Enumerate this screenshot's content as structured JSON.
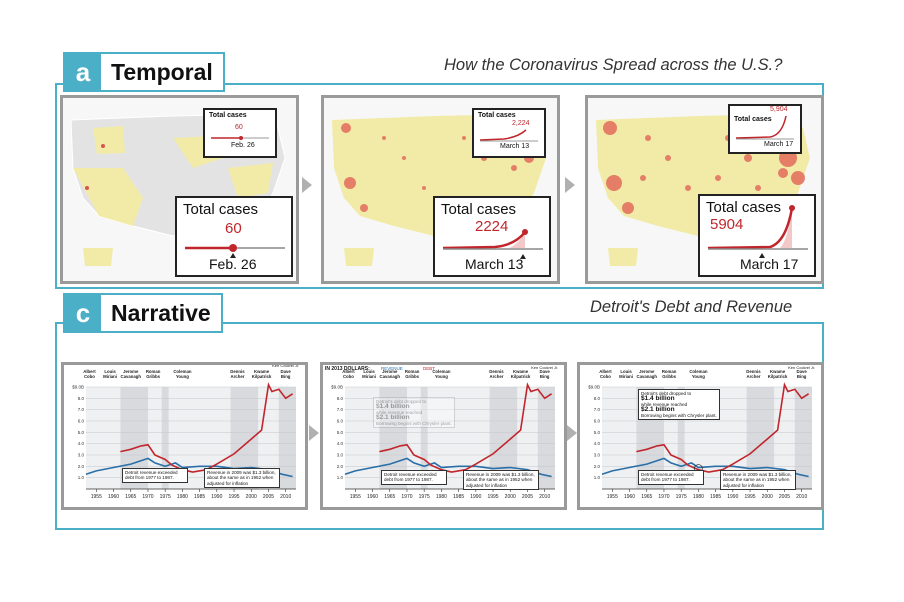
{
  "temporal": {
    "letter": "a",
    "label": "Temporal",
    "subtitle": "How the Coronavirus Spread across the U.S.?",
    "frames": [
      {
        "small_title": "Total cases",
        "small_value": "60",
        "small_date": "Feb. 26",
        "big_title": "Total cases",
        "big_value": "60",
        "big_date": "Feb. 26"
      },
      {
        "small_title": "Total cases",
        "small_value": "2,224",
        "small_date": "March 13",
        "big_title": "Total cases",
        "big_value": "2224",
        "big_date": "March 13"
      },
      {
        "small_title": "Total cases",
        "small_value": "5,904",
        "small_date": "March 17",
        "big_title": "Total cases",
        "big_value": "5904",
        "big_date": "March 17"
      }
    ]
  },
  "narrative": {
    "letter": "c",
    "label": "Narrative",
    "subtitle": "Detroit's Debt and Revenue",
    "chart_header": "IN 2013 DOLLARS:",
    "legend_revenue": "REVENUE",
    "legend_debt": "DEBT",
    "mayors": [
      "Albert Cobo",
      "Louis Miriani",
      "Jerome Cavanagh",
      "Roman Gribbs",
      "Coleman Young",
      "Dennis Archer",
      "Kwame Kilpatrick",
      "Dave Bing"
    ],
    "mayor_extra": "Ken Cockrel Jr.",
    "note_exceeded": "Detroit revenue exceeded debt from 1977 to 1987.",
    "note_revenue_2009": "Revenue in 2009 was $1.3 billion, about the same as in 1952 when adjusted for inflation",
    "note_debt_line1": "Detroit's debt dropped to",
    "note_debt_value1": "$1.4 billion",
    "note_debt_line2": "while revenue reached",
    "note_debt_value2": "$2.1 billion",
    "note_debt_line3": "Borrowing begins with Chrysler plant.",
    "colors": {
      "revenue": "#2a6fa8",
      "debt": "#c0262c",
      "accent": "#4bafc8"
    }
  },
  "chart_data": {
    "type": "line",
    "title": "",
    "xlabel": "",
    "ylabel": "",
    "x_ticks": [
      "1955",
      "1960",
      "1965",
      "1970",
      "1975",
      "1980",
      "1985",
      "1990",
      "1995",
      "2000",
      "2005",
      "2010"
    ],
    "y_ticks": [
      "1.0",
      "2.0",
      "3.0",
      "4.0",
      "5.0",
      "6.0",
      "7.0",
      "8.0",
      "$9.0B"
    ],
    "ylim": [
      0,
      9
    ],
    "xlim": [
      1952,
      2013
    ],
    "series": [
      {
        "name": "REVENUE",
        "x": [
          1952,
          1955,
          1960,
          1965,
          1970,
          1972,
          1975,
          1978,
          1980,
          1985,
          1990,
          1995,
          2000,
          2005,
          2009,
          2012
        ],
        "values": [
          1.3,
          1.6,
          1.9,
          2.2,
          2.7,
          2.3,
          2.0,
          2.3,
          1.9,
          2.0,
          2.0,
          1.8,
          1.9,
          1.7,
          1.3,
          1.1
        ]
      },
      {
        "name": "DEBT",
        "x": [
          1962,
          1965,
          1968,
          1970,
          1972,
          1975,
          1977,
          1980,
          1983,
          1987,
          1990,
          1995,
          2000,
          2003,
          2005,
          2006,
          2008,
          2010,
          2012
        ],
        "values": [
          3.3,
          3.5,
          3.8,
          3.9,
          3.0,
          2.6,
          2.1,
          1.7,
          1.5,
          1.7,
          2.2,
          3.1,
          4.4,
          5.2,
          9.2,
          8.6,
          8.8,
          8.0,
          8.4
        ]
      }
    ]
  }
}
